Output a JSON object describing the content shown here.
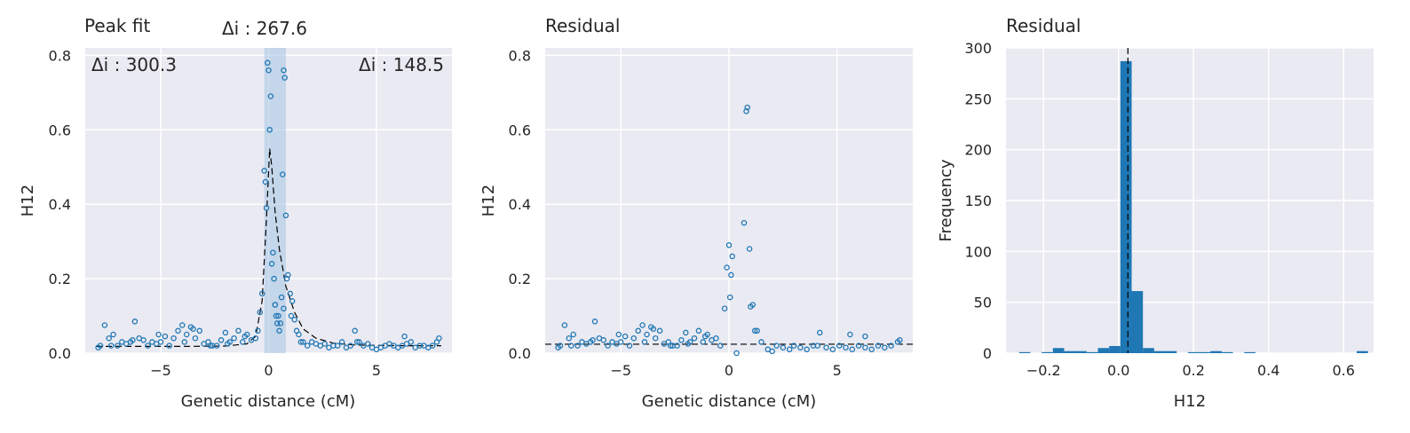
{
  "chart_data": [
    {
      "type": "scatter",
      "title": "Peak fit",
      "xlabel": "Genetic distance (cM)",
      "ylabel": "H12",
      "xlim": [
        -8.5,
        8.5
      ],
      "ylim": [
        0,
        0.82
      ],
      "xticks": [
        -5,
        0,
        5
      ],
      "xtick_labels": [
        "−5",
        "0",
        "5"
      ],
      "yticks": [
        0,
        0.2,
        0.4,
        0.6,
        0.8
      ],
      "ytick_labels": [
        "0.0",
        "0.2",
        "0.4",
        "0.6",
        "0.8"
      ],
      "grid": true,
      "annotations": [
        {
          "text": "Δi : 300.3",
          "place": "top-left"
        },
        {
          "text": "Δi : 267.6",
          "place": "above-peak"
        },
        {
          "text": "Δi : 148.5",
          "place": "top-right"
        }
      ],
      "shaded_band": {
        "x0": -0.2,
        "x1": 0.8
      },
      "fit_curve": {
        "x": [
          -8,
          -6,
          -4,
          -2,
          -1,
          -0.6,
          -0.3,
          -0.1,
          0.05,
          0.15,
          0.3,
          0.5,
          0.8,
          1.2,
          1.6,
          2.2,
          3,
          4,
          6,
          8
        ],
        "y": [
          0.018,
          0.018,
          0.018,
          0.019,
          0.025,
          0.045,
          0.14,
          0.36,
          0.55,
          0.5,
          0.38,
          0.28,
          0.18,
          0.11,
          0.065,
          0.04,
          0.027,
          0.022,
          0.02,
          0.02
        ]
      },
      "points": {
        "x": [
          -7.9,
          -7.8,
          -7.6,
          -7.4,
          -7.2,
          -7.0,
          -6.8,
          -6.6,
          -6.4,
          -6.2,
          -6.0,
          -5.8,
          -5.6,
          -5.4,
          -5.2,
          -5.0,
          -4.8,
          -4.6,
          -4.4,
          -4.2,
          -4.0,
          -3.8,
          -3.6,
          -3.4,
          -3.2,
          -3.0,
          -2.8,
          -2.6,
          -2.4,
          -2.2,
          -2.0,
          -1.8,
          -1.6,
          -1.4,
          -1.2,
          -1.0,
          -0.8,
          -0.6,
          -0.5,
          -0.4,
          -0.3,
          -0.2,
          -0.15,
          -0.1,
          -0.05,
          0.0,
          0.05,
          0.1,
          0.15,
          0.2,
          0.25,
          0.3,
          0.35,
          0.4,
          0.5,
          0.55,
          0.6,
          0.65,
          0.7,
          0.75,
          0.8,
          0.85,
          0.9,
          1.0,
          1.1,
          1.2,
          1.3,
          1.4,
          1.5,
          1.6,
          1.8,
          2.0,
          2.2,
          2.4,
          2.6,
          2.8,
          3.0,
          3.2,
          3.4,
          3.6,
          3.8,
          4.0,
          4.2,
          4.4,
          4.6,
          4.8,
          5.0,
          5.2,
          5.4,
          5.6,
          5.8,
          6.0,
          6.2,
          6.4,
          6.6,
          6.8,
          7.0,
          7.2,
          7.4,
          7.6,
          7.8,
          7.9,
          -7.3,
          -6.3,
          -5.1,
          -3.9,
          -3.5,
          -2.7,
          -1.9,
          -1.1,
          4.1,
          6.3,
          0.3,
          0.45,
          0.7,
          1.05
        ],
        "y": [
          0.015,
          0.02,
          0.075,
          0.04,
          0.05,
          0.02,
          0.03,
          0.025,
          0.03,
          0.085,
          0.04,
          0.035,
          0.02,
          0.03,
          0.025,
          0.03,
          0.045,
          0.02,
          0.04,
          0.06,
          0.075,
          0.05,
          0.07,
          0.04,
          0.06,
          0.025,
          0.03,
          0.02,
          0.02,
          0.035,
          0.055,
          0.03,
          0.04,
          0.06,
          0.03,
          0.05,
          0.035,
          0.04,
          0.06,
          0.11,
          0.16,
          0.49,
          0.46,
          0.39,
          0.78,
          0.76,
          0.6,
          0.69,
          0.24,
          0.27,
          0.2,
          0.13,
          0.1,
          0.08,
          0.06,
          0.08,
          0.15,
          0.48,
          0.76,
          0.74,
          0.37,
          0.2,
          0.21,
          0.16,
          0.14,
          0.09,
          0.06,
          0.05,
          0.03,
          0.03,
          0.02,
          0.03,
          0.025,
          0.02,
          0.025,
          0.015,
          0.02,
          0.02,
          0.03,
          0.015,
          0.02,
          0.06,
          0.03,
          0.02,
          0.025,
          0.015,
          0.01,
          0.015,
          0.02,
          0.025,
          0.02,
          0.015,
          0.02,
          0.025,
          0.03,
          0.015,
          0.02,
          0.02,
          0.015,
          0.02,
          0.03,
          0.04,
          0.02,
          0.035,
          0.05,
          0.03,
          0.065,
          0.02,
          0.025,
          0.045,
          0.03,
          0.045,
          0.13,
          0.1,
          0.12,
          0.1
        ]
      }
    },
    {
      "type": "scatter",
      "title": "Residual",
      "xlabel": "Genetic distance (cM)",
      "ylabel": "H12",
      "xlim": [
        -8.5,
        8.5
      ],
      "ylim": [
        0,
        0.82
      ],
      "xticks": [
        -5,
        0,
        5
      ],
      "xtick_labels": [
        "−5",
        "0",
        "5"
      ],
      "yticks": [
        0,
        0.2,
        0.4,
        0.6,
        0.8
      ],
      "ytick_labels": [
        "0.0",
        "0.2",
        "0.4",
        "0.6",
        "0.8"
      ],
      "grid": true,
      "reference_line_y": 0.024,
      "points": {
        "x": [
          -7.9,
          -7.8,
          -7.6,
          -7.4,
          -7.2,
          -7.0,
          -6.8,
          -6.6,
          -6.4,
          -6.2,
          -6.0,
          -5.8,
          -5.6,
          -5.4,
          -5.2,
          -5.0,
          -4.8,
          -4.6,
          -4.4,
          -4.2,
          -4.0,
          -3.8,
          -3.6,
          -3.4,
          -3.2,
          -3.0,
          -2.8,
          -2.6,
          -2.4,
          -2.2,
          -2.0,
          -1.8,
          -1.6,
          -1.4,
          -1.2,
          -1.0,
          -0.8,
          -0.6,
          -0.4,
          -0.2,
          -0.1,
          0.0,
          0.05,
          0.15,
          0.7,
          0.8,
          0.85,
          0.95,
          1.0,
          1.1,
          1.2,
          1.3,
          1.5,
          1.8,
          2.0,
          2.2,
          2.5,
          2.8,
          3.0,
          3.3,
          3.6,
          3.9,
          4.2,
          4.5,
          4.8,
          5.1,
          5.4,
          5.7,
          6.0,
          6.3,
          6.6,
          6.9,
          7.2,
          7.5,
          7.8,
          7.9,
          -7.3,
          -6.3,
          -5.1,
          -3.9,
          -3.5,
          -2.7,
          -1.9,
          -1.1,
          0.1,
          0.35,
          4.1,
          5.6,
          6.3
        ],
        "y": [
          0.015,
          0.02,
          0.075,
          0.04,
          0.05,
          0.02,
          0.03,
          0.025,
          0.03,
          0.085,
          0.04,
          0.035,
          0.02,
          0.03,
          0.025,
          0.03,
          0.045,
          0.02,
          0.04,
          0.06,
          0.075,
          0.05,
          0.07,
          0.04,
          0.06,
          0.025,
          0.03,
          0.02,
          0.02,
          0.035,
          0.055,
          0.03,
          0.04,
          0.06,
          0.03,
          0.05,
          0.035,
          0.04,
          0.02,
          0.12,
          0.23,
          0.29,
          0.15,
          0.26,
          0.35,
          0.65,
          0.66,
          0.28,
          0.125,
          0.13,
          0.06,
          0.06,
          0.03,
          0.01,
          0.005,
          0.02,
          0.015,
          0.01,
          0.02,
          0.015,
          0.01,
          0.02,
          0.055,
          0.015,
          0.01,
          0.02,
          0.015,
          0.01,
          0.02,
          0.015,
          0.01,
          0.02,
          0.015,
          0.02,
          0.03,
          0.035,
          0.02,
          0.035,
          0.05,
          0.03,
          0.065,
          0.02,
          0.025,
          0.045,
          0.21,
          0.0,
          0.02,
          0.05,
          0.045
        ]
      }
    },
    {
      "type": "bar",
      "title": "Residual",
      "xlabel": "H12",
      "ylabel": "Frequency",
      "xlim": [
        -0.3,
        0.68
      ],
      "ylim": [
        0,
        300
      ],
      "xticks": [
        -0.2,
        0.0,
        0.2,
        0.4,
        0.6
      ],
      "xtick_labels": [
        "−0.2",
        "0.0",
        "0.2",
        "0.4",
        "0.6"
      ],
      "yticks": [
        0,
        50,
        100,
        150,
        200,
        250,
        300
      ],
      "ytick_labels": [
        "0",
        "50",
        "100",
        "150",
        "200",
        "250",
        "300"
      ],
      "grid": true,
      "reference_line_x": 0.025,
      "bin_edges": [
        -0.265,
        -0.235,
        -0.205,
        -0.175,
        -0.145,
        -0.115,
        -0.085,
        -0.055,
        -0.025,
        0.005,
        0.035,
        0.065,
        0.095,
        0.125,
        0.155,
        0.185,
        0.215,
        0.245,
        0.275,
        0.305,
        0.335,
        0.365,
        0.395,
        0.425,
        0.455,
        0.485,
        0.515,
        0.545,
        0.575,
        0.605,
        0.635,
        0.665
      ],
      "values": [
        1,
        0,
        1,
        5,
        2,
        2,
        1,
        5,
        7,
        287,
        61,
        5,
        2,
        2,
        0,
        1,
        1,
        2,
        1,
        0,
        1,
        0,
        0,
        0,
        0,
        0,
        0,
        0,
        0,
        0,
        2
      ]
    }
  ]
}
